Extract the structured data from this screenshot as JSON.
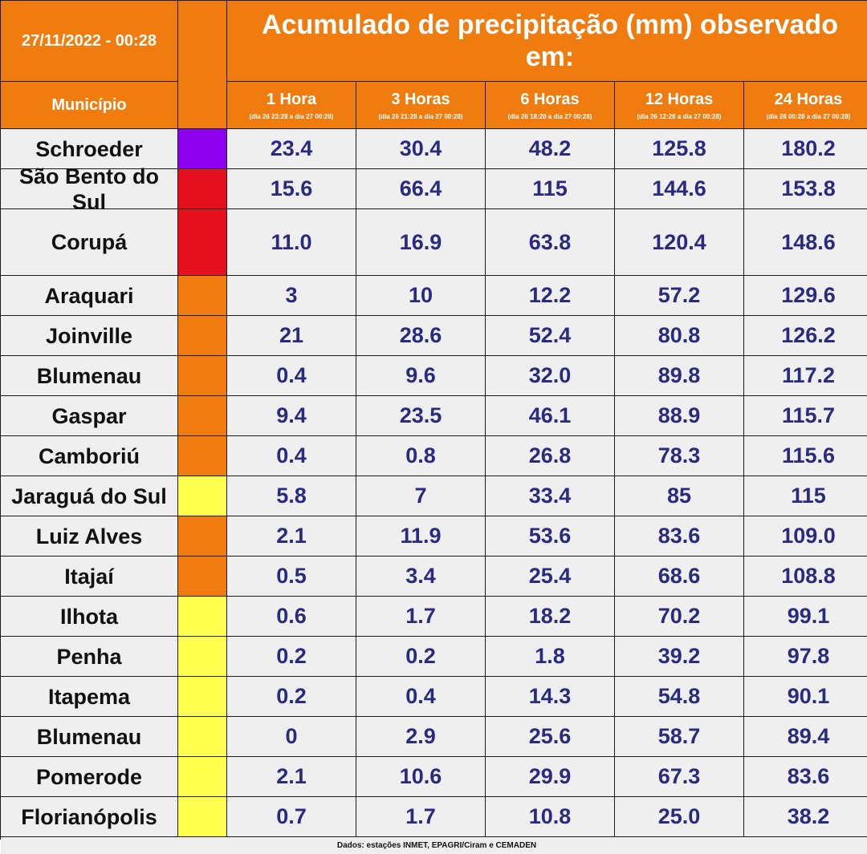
{
  "header": {
    "date": "27/11/2022 - 00:28",
    "title": "Acumulado de precipitação (mm) observado em:",
    "municipio_label": "Município",
    "periods": [
      {
        "label": "1 Hora",
        "range": "(dia 26 23:28 a dia 27 00:28)"
      },
      {
        "label": "3 Horas",
        "range": "(dia 26 21:28 a dia 27 00:28)"
      },
      {
        "label": "6 Horas",
        "range": "(dia 26 18:28 a dia 27 00:28)"
      },
      {
        "label": "12 Horas",
        "range": "(dia 26 12:28 a dia 27 00:28)"
      },
      {
        "label": "24 Horas",
        "range": "(dia 26 00:28 a dia 27 00:28)"
      }
    ]
  },
  "colors": {
    "header_orange": "#f07c10",
    "cell_bg": "#efefef",
    "value_text": "#2a2a7e",
    "purple": "#9000f0",
    "red": "#e6101e",
    "orange": "#f07c10",
    "yellow": "#ffff4d"
  },
  "rows": [
    {
      "municipio": "Schroeder",
      "alert": "purple",
      "values": [
        "23.4",
        "30.4",
        "48.2",
        "125.8",
        "180.2"
      ]
    },
    {
      "municipio": "São Bento do Sul",
      "alert": "red",
      "values": [
        "15.6",
        "66.4",
        "115",
        "144.6",
        "153.8"
      ]
    },
    {
      "municipio": "Corupá",
      "alert": "red",
      "values": [
        "11.0",
        "16.9",
        "63.8",
        "120.4",
        "148.6"
      ]
    },
    {
      "municipio": "Araquari",
      "alert": "orange",
      "values": [
        "3",
        "10",
        "12.2",
        "57.2",
        "129.6"
      ]
    },
    {
      "municipio": "Joinville",
      "alert": "orange",
      "values": [
        "21",
        "28.6",
        "52.4",
        "80.8",
        "126.2"
      ]
    },
    {
      "municipio": "Blumenau",
      "alert": "orange",
      "values": [
        "0.4",
        "9.6",
        "32.0",
        "89.8",
        "117.2"
      ]
    },
    {
      "municipio": "Gaspar",
      "alert": "orange",
      "values": [
        "9.4",
        "23.5",
        "46.1",
        "88.9",
        "115.7"
      ]
    },
    {
      "municipio": "Camboriú",
      "alert": "orange",
      "values": [
        "0.4",
        "0.8",
        "26.8",
        "78.3",
        "115.6"
      ]
    },
    {
      "municipio": "Jaraguá do Sul",
      "alert": "yellow",
      "values": [
        "5.8",
        "7",
        "33.4",
        "85",
        "115"
      ]
    },
    {
      "municipio": "Luiz Alves",
      "alert": "orange",
      "values": [
        "2.1",
        "11.9",
        "53.6",
        "83.6",
        "109.0"
      ]
    },
    {
      "municipio": "Itajaí",
      "alert": "orange",
      "values": [
        "0.5",
        "3.4",
        "25.4",
        "68.6",
        "108.8"
      ]
    },
    {
      "municipio": "Ilhota",
      "alert": "yellow",
      "values": [
        "0.6",
        "1.7",
        "18.2",
        "70.2",
        "99.1"
      ]
    },
    {
      "municipio": "Penha",
      "alert": "yellow",
      "values": [
        "0.2",
        "0.2",
        "1.8",
        "39.2",
        "97.8"
      ]
    },
    {
      "municipio": "Itapema",
      "alert": "yellow",
      "values": [
        "0.2",
        "0.4",
        "14.3",
        "54.8",
        "90.1"
      ]
    },
    {
      "municipio": "Blumenau",
      "alert": "yellow",
      "values": [
        "0",
        "2.9",
        "25.6",
        "58.7",
        "89.4"
      ]
    },
    {
      "municipio": "Pomerode",
      "alert": "yellow",
      "values": [
        "2.1",
        "10.6",
        "29.9",
        "67.3",
        "83.6"
      ]
    },
    {
      "municipio": "Florianópolis",
      "alert": "yellow",
      "values": [
        "0.7",
        "1.7",
        "10.8",
        "25.0",
        "38.2"
      ]
    }
  ],
  "footer": "Dados: estações INMET, EPAGRI/Ciram e CEMADEN"
}
